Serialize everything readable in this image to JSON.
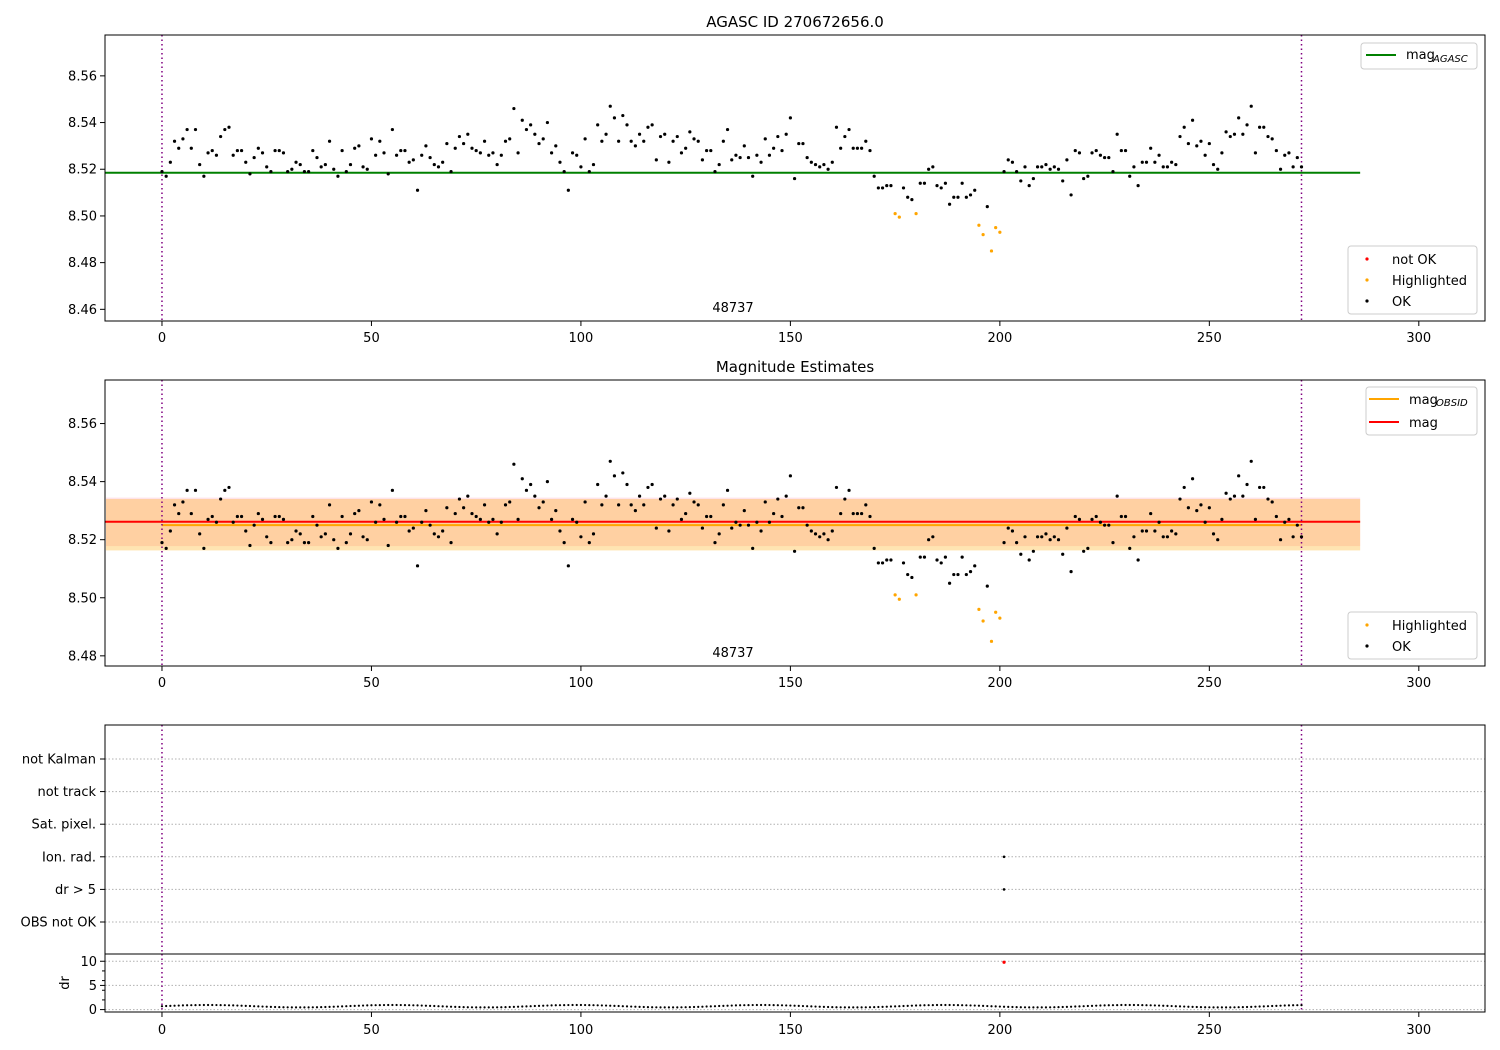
{
  "chart_data": [
    {
      "type": "scatter",
      "title": "AGASC ID 270672656.0",
      "annotation": "48737",
      "xlim": [
        -13.6,
        315.8
      ],
      "ylim": [
        8.455,
        8.5775
      ],
      "xticks": [
        0,
        50,
        100,
        150,
        200,
        250,
        300
      ],
      "yticks": [
        8.46,
        8.48,
        8.5,
        8.52,
        8.54,
        8.56
      ],
      "grid": false,
      "vlines": [
        0,
        272
      ],
      "hlines": [
        {
          "name": "mag_AGASC",
          "y": 8.5185,
          "x_range": [
            -13.6,
            286
          ],
          "color": "#008000"
        }
      ],
      "legend_top": {
        "placement": "upper right",
        "entries": [
          {
            "label": "mag",
            "sub": "AGASC",
            "color": "#008000"
          }
        ]
      },
      "legend_bottom": {
        "placement": "lower right",
        "entries": [
          {
            "label": "not OK",
            "color": "#ff0000"
          },
          {
            "label": "Highlighted",
            "color": "#ffa500"
          },
          {
            "label": "OK",
            "color": "#000000"
          }
        ]
      },
      "highlighted": [
        [
          175,
          8.501
        ],
        [
          176,
          8.4995
        ],
        [
          180,
          8.501
        ],
        [
          195,
          8.496
        ],
        [
          196,
          8.492
        ],
        [
          198,
          8.485
        ],
        [
          199,
          8.495
        ],
        [
          200,
          8.493
        ]
      ]
    },
    {
      "type": "scatter",
      "title": "Magnitude Estimates",
      "annotation": "48737",
      "xlim": [
        -13.6,
        315.8
      ],
      "ylim": [
        8.4765,
        8.575
      ],
      "xticks": [
        0,
        50,
        100,
        150,
        200,
        250,
        300
      ],
      "yticks": [
        8.48,
        8.5,
        8.52,
        8.54,
        8.56
      ],
      "grid": false,
      "vlines": [
        0,
        272
      ],
      "bands": [
        {
          "name": "mag",
          "y0": 8.5178,
          "y1": 8.5345,
          "color": "#ffc0cb"
        },
        {
          "name": "mag_OBSID",
          "y0": 8.5163,
          "y1": 8.534,
          "color": "#ffa500"
        }
      ],
      "hlines": [
        {
          "name": "mag_OBSID",
          "y": 8.525,
          "x_range": [
            0,
            272
          ],
          "color": "#ffa500"
        },
        {
          "name": "mag",
          "y": 8.5262,
          "x_range": [
            -13.6,
            286
          ],
          "color": "#ff0000"
        }
      ],
      "legend_top": {
        "placement": "upper right",
        "entries": [
          {
            "label": "mag",
            "sub": "OBSID",
            "color": "#ffa500"
          },
          {
            "label": "mag",
            "sub": "",
            "color": "#ff0000"
          }
        ]
      },
      "legend_bottom": {
        "placement": "lower right",
        "entries": [
          {
            "label": "Highlighted",
            "color": "#ffa500"
          },
          {
            "label": "OK",
            "color": "#000000"
          }
        ]
      },
      "highlighted": [
        [
          175,
          8.501
        ],
        [
          176,
          8.4995
        ],
        [
          180,
          8.501
        ],
        [
          195,
          8.496
        ],
        [
          196,
          8.492
        ],
        [
          198,
          8.485
        ],
        [
          199,
          8.495
        ],
        [
          200,
          8.493
        ]
      ]
    },
    {
      "type": "scatter",
      "title": "",
      "xlim": [
        -13.6,
        315.8
      ],
      "categories": [
        "not Kalman",
        "not track",
        "Sat. pixel.",
        "Ion. rad.",
        "dr > 5",
        "OBS not OK"
      ],
      "grid": true,
      "vlines": [
        0,
        272
      ],
      "flag_points": [
        {
          "category": "Ion. rad.",
          "x": 201
        },
        {
          "category": "dr > 5",
          "x": 201
        }
      ]
    },
    {
      "type": "scatter",
      "title": "",
      "ylabel": "dr",
      "xlim": [
        -13.6,
        315.8
      ],
      "ylim": [
        -0.5,
        11.5
      ],
      "xticks": [
        0,
        50,
        100,
        150,
        200,
        250,
        300
      ],
      "yticks": [
        0,
        5,
        10
      ],
      "grid": true,
      "vlines": [
        0,
        272
      ],
      "outlier": [
        201,
        9.8
      ],
      "dr_baseline": 0.4
    }
  ],
  "mag_series": [
    [
      0,
      8.519
    ],
    [
      1,
      8.517
    ],
    [
      2,
      8.523
    ],
    [
      3,
      8.532
    ],
    [
      4,
      8.529
    ],
    [
      5,
      8.533
    ],
    [
      6,
      8.537
    ],
    [
      7,
      8.529
    ],
    [
      8,
      8.537
    ],
    [
      9,
      8.522
    ],
    [
      10,
      8.517
    ],
    [
      11,
      8.527
    ],
    [
      12,
      8.528
    ],
    [
      13,
      8.526
    ],
    [
      14,
      8.534
    ],
    [
      15,
      8.537
    ],
    [
      16,
      8.538
    ],
    [
      17,
      8.526
    ],
    [
      18,
      8.528
    ],
    [
      19,
      8.528
    ],
    [
      20,
      8.523
    ],
    [
      21,
      8.518
    ],
    [
      22,
      8.525
    ],
    [
      23,
      8.529
    ],
    [
      24,
      8.527
    ],
    [
      25,
      8.521
    ],
    [
      26,
      8.519
    ],
    [
      27,
      8.528
    ],
    [
      28,
      8.528
    ],
    [
      29,
      8.527
    ],
    [
      30,
      8.519
    ],
    [
      31,
      8.52
    ],
    [
      32,
      8.523
    ],
    [
      33,
      8.522
    ],
    [
      34,
      8.519
    ],
    [
      35,
      8.519
    ],
    [
      36,
      8.528
    ],
    [
      37,
      8.525
    ],
    [
      38,
      8.521
    ],
    [
      39,
      8.522
    ],
    [
      40,
      8.532
    ],
    [
      41,
      8.52
    ],
    [
      42,
      8.517
    ],
    [
      43,
      8.528
    ],
    [
      44,
      8.519
    ],
    [
      45,
      8.522
    ],
    [
      46,
      8.529
    ],
    [
      47,
      8.53
    ],
    [
      48,
      8.521
    ],
    [
      49,
      8.52
    ],
    [
      50,
      8.533
    ],
    [
      51,
      8.526
    ],
    [
      52,
      8.532
    ],
    [
      53,
      8.527
    ],
    [
      54,
      8.518
    ],
    [
      55,
      8.537
    ],
    [
      56,
      8.526
    ],
    [
      57,
      8.528
    ],
    [
      58,
      8.528
    ],
    [
      59,
      8.523
    ],
    [
      60,
      8.524
    ],
    [
      61,
      8.511
    ],
    [
      62,
      8.526
    ],
    [
      63,
      8.53
    ],
    [
      64,
      8.525
    ],
    [
      65,
      8.522
    ],
    [
      66,
      8.521
    ],
    [
      67,
      8.523
    ],
    [
      68,
      8.531
    ],
    [
      69,
      8.519
    ],
    [
      70,
      8.529
    ],
    [
      71,
      8.534
    ],
    [
      72,
      8.531
    ],
    [
      73,
      8.535
    ],
    [
      74,
      8.529
    ],
    [
      75,
      8.528
    ],
    [
      76,
      8.527
    ],
    [
      77,
      8.532
    ],
    [
      78,
      8.526
    ],
    [
      79,
      8.527
    ],
    [
      80,
      8.522
    ],
    [
      81,
      8.526
    ],
    [
      82,
      8.532
    ],
    [
      83,
      8.533
    ],
    [
      84,
      8.546
    ],
    [
      85,
      8.527
    ],
    [
      86,
      8.541
    ],
    [
      87,
      8.537
    ],
    [
      88,
      8.539
    ],
    [
      89,
      8.535
    ],
    [
      90,
      8.531
    ],
    [
      91,
      8.533
    ],
    [
      92,
      8.54
    ],
    [
      93,
      8.527
    ],
    [
      94,
      8.53
    ],
    [
      95,
      8.523
    ],
    [
      96,
      8.519
    ],
    [
      97,
      8.511
    ],
    [
      98,
      8.527
    ],
    [
      99,
      8.526
    ],
    [
      100,
      8.521
    ],
    [
      101,
      8.533
    ],
    [
      102,
      8.519
    ],
    [
      103,
      8.522
    ],
    [
      104,
      8.539
    ],
    [
      105,
      8.532
    ],
    [
      106,
      8.535
    ],
    [
      107,
      8.547
    ],
    [
      108,
      8.542
    ],
    [
      109,
      8.532
    ],
    [
      110,
      8.543
    ],
    [
      111,
      8.539
    ],
    [
      112,
      8.532
    ],
    [
      113,
      8.53
    ],
    [
      114,
      8.535
    ],
    [
      115,
      8.532
    ],
    [
      116,
      8.538
    ],
    [
      117,
      8.539
    ],
    [
      118,
      8.524
    ],
    [
      119,
      8.534
    ],
    [
      120,
      8.535
    ],
    [
      121,
      8.523
    ],
    [
      122,
      8.532
    ],
    [
      123,
      8.534
    ],
    [
      124,
      8.527
    ],
    [
      125,
      8.529
    ],
    [
      126,
      8.536
    ],
    [
      127,
      8.533
    ],
    [
      128,
      8.532
    ],
    [
      129,
      8.524
    ],
    [
      130,
      8.528
    ],
    [
      131,
      8.528
    ],
    [
      132,
      8.519
    ],
    [
      133,
      8.522
    ],
    [
      134,
      8.532
    ],
    [
      135,
      8.537
    ],
    [
      136,
      8.524
    ],
    [
      137,
      8.526
    ],
    [
      138,
      8.525
    ],
    [
      139,
      8.53
    ],
    [
      140,
      8.525
    ],
    [
      141,
      8.517
    ],
    [
      142,
      8.526
    ],
    [
      143,
      8.523
    ],
    [
      144,
      8.533
    ],
    [
      145,
      8.526
    ],
    [
      146,
      8.529
    ],
    [
      147,
      8.534
    ],
    [
      148,
      8.528
    ],
    [
      149,
      8.535
    ],
    [
      150,
      8.542
    ],
    [
      151,
      8.516
    ],
    [
      152,
      8.531
    ],
    [
      153,
      8.531
    ],
    [
      154,
      8.525
    ],
    [
      155,
      8.523
    ],
    [
      156,
      8.522
    ],
    [
      157,
      8.521
    ],
    [
      158,
      8.522
    ],
    [
      159,
      8.52
    ],
    [
      160,
      8.523
    ],
    [
      161,
      8.538
    ],
    [
      162,
      8.529
    ],
    [
      163,
      8.534
    ],
    [
      164,
      8.537
    ],
    [
      165,
      8.529
    ],
    [
      166,
      8.529
    ],
    [
      167,
      8.529
    ],
    [
      168,
      8.532
    ],
    [
      169,
      8.528
    ],
    [
      170,
      8.517
    ],
    [
      171,
      8.512
    ],
    [
      172,
      8.512
    ],
    [
      173,
      8.513
    ],
    [
      174,
      8.513
    ],
    [
      177,
      8.512
    ],
    [
      178,
      8.508
    ],
    [
      179,
      8.507
    ],
    [
      181,
      8.514
    ],
    [
      182,
      8.514
    ],
    [
      183,
      8.52
    ],
    [
      184,
      8.521
    ],
    [
      185,
      8.513
    ],
    [
      186,
      8.512
    ],
    [
      187,
      8.514
    ],
    [
      188,
      8.505
    ],
    [
      189,
      8.508
    ],
    [
      190,
      8.508
    ],
    [
      191,
      8.514
    ],
    [
      192,
      8.508
    ],
    [
      193,
      8.509
    ],
    [
      194,
      8.511
    ],
    [
      197,
      8.504
    ],
    [
      201,
      8.519
    ],
    [
      202,
      8.524
    ],
    [
      203,
      8.523
    ],
    [
      204,
      8.519
    ],
    [
      205,
      8.515
    ],
    [
      206,
      8.521
    ],
    [
      207,
      8.513
    ],
    [
      208,
      8.516
    ],
    [
      209,
      8.521
    ],
    [
      210,
      8.521
    ],
    [
      211,
      8.522
    ],
    [
      212,
      8.52
    ],
    [
      213,
      8.521
    ],
    [
      214,
      8.52
    ],
    [
      215,
      8.515
    ],
    [
      216,
      8.524
    ],
    [
      217,
      8.509
    ],
    [
      218,
      8.528
    ],
    [
      219,
      8.527
    ],
    [
      220,
      8.516
    ],
    [
      221,
      8.517
    ],
    [
      222,
      8.527
    ],
    [
      223,
      8.528
    ],
    [
      224,
      8.526
    ],
    [
      225,
      8.525
    ],
    [
      226,
      8.525
    ],
    [
      227,
      8.519
    ],
    [
      228,
      8.535
    ],
    [
      229,
      8.528
    ],
    [
      230,
      8.528
    ],
    [
      231,
      8.517
    ],
    [
      232,
      8.521
    ],
    [
      233,
      8.513
    ],
    [
      234,
      8.523
    ],
    [
      235,
      8.523
    ],
    [
      236,
      8.529
    ],
    [
      237,
      8.523
    ],
    [
      238,
      8.526
    ],
    [
      239,
      8.521
    ],
    [
      240,
      8.521
    ],
    [
      241,
      8.523
    ],
    [
      242,
      8.522
    ],
    [
      243,
      8.534
    ],
    [
      244,
      8.538
    ],
    [
      245,
      8.531
    ],
    [
      246,
      8.541
    ],
    [
      247,
      8.53
    ],
    [
      248,
      8.532
    ],
    [
      249,
      8.526
    ],
    [
      250,
      8.531
    ],
    [
      251,
      8.522
    ],
    [
      252,
      8.52
    ],
    [
      253,
      8.527
    ],
    [
      254,
      8.536
    ],
    [
      255,
      8.534
    ],
    [
      256,
      8.535
    ],
    [
      257,
      8.542
    ],
    [
      258,
      8.535
    ],
    [
      259,
      8.539
    ],
    [
      260,
      8.547
    ],
    [
      261,
      8.527
    ],
    [
      262,
      8.538
    ],
    [
      263,
      8.538
    ],
    [
      264,
      8.534
    ],
    [
      265,
      8.533
    ],
    [
      266,
      8.528
    ],
    [
      267,
      8.52
    ],
    [
      268,
      8.526
    ],
    [
      269,
      8.527
    ],
    [
      270,
      8.521
    ],
    [
      271,
      8.525
    ],
    [
      272,
      8.521
    ]
  ]
}
